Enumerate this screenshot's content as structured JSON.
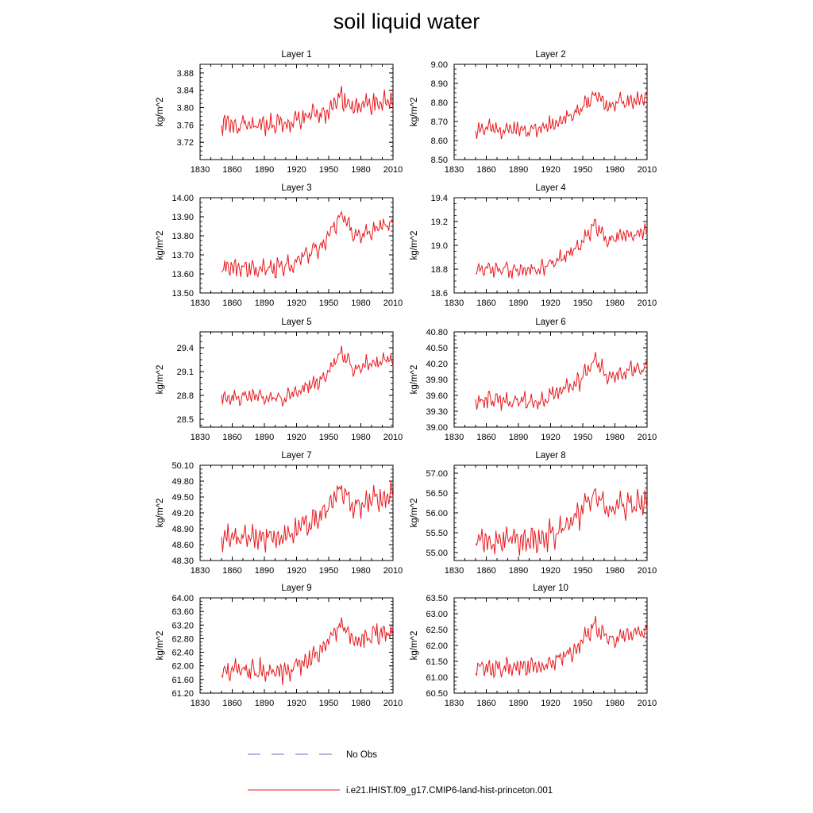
{
  "title": "soil liquid water",
  "legend": {
    "placement": "bottom-center",
    "entries": [
      {
        "label": "No Obs",
        "color": "#6b6bc8",
        "style": "dashed"
      },
      {
        "label": "i.e21.IHIST.f09_g17.CMIP6-land-hist-princeton.001",
        "color": "#e8191e",
        "style": "solid"
      }
    ]
  },
  "colors": {
    "series": "#e8191e",
    "obs": "#6b6bc8",
    "axis": "#000000"
  },
  "chart_data": [
    {
      "type": "line",
      "title": "Layer 1",
      "ylabel": "kg/m^2",
      "xlim": [
        1830,
        2010
      ],
      "ylim": [
        3.68,
        3.9
      ],
      "xticks": [
        1830,
        1860,
        1890,
        1920,
        1950,
        1980,
        2010
      ],
      "yticks": [
        3.72,
        3.76,
        3.8,
        3.84,
        3.88
      ],
      "ytick_labels": [
        "3.72",
        "3.76",
        "3.80",
        "3.84",
        "3.88"
      ],
      "base": 3.76,
      "trend": 0.065,
      "amp": 0.03,
      "seed": 1,
      "series": [
        {
          "name": "i.e21.IHIST.f09_g17.CMIP6-land-hist-princeton.001",
          "x_start": 1850,
          "x_end": 2010
        }
      ]
    },
    {
      "type": "line",
      "title": "Layer 2",
      "ylabel": "kg/m^2",
      "xlim": [
        1830,
        2010
      ],
      "ylim": [
        8.5,
        9.0
      ],
      "xticks": [
        1830,
        1860,
        1890,
        1920,
        1950,
        1980,
        2010
      ],
      "yticks": [
        8.5,
        8.6,
        8.7,
        8.8,
        8.9,
        9.0
      ],
      "ytick_labels": [
        "8.50",
        "8.60",
        "8.70",
        "8.80",
        "8.90",
        "9.00"
      ],
      "base": 8.66,
      "trend": 0.19,
      "amp": 0.05,
      "seed": 2,
      "series": [
        {
          "name": "i.e21.IHIST.f09_g17.CMIP6-land-hist-princeton.001",
          "x_start": 1850,
          "x_end": 2010
        }
      ]
    },
    {
      "type": "line",
      "title": "Layer 3",
      "ylabel": "kg/m^2",
      "xlim": [
        1830,
        2010
      ],
      "ylim": [
        13.5,
        14.0
      ],
      "xticks": [
        1830,
        1860,
        1890,
        1920,
        1950,
        1980,
        2010
      ],
      "yticks": [
        13.5,
        13.6,
        13.7,
        13.8,
        13.9,
        14.0
      ],
      "ytick_labels": [
        "13.50",
        "13.60",
        "13.70",
        "13.80",
        "13.90",
        "14.00"
      ],
      "base": 13.63,
      "trend": 0.28,
      "amp": 0.06,
      "seed": 3,
      "series": [
        {
          "name": "i.e21.IHIST.f09_g17.CMIP6-land-hist-princeton.001",
          "x_start": 1850,
          "x_end": 2010
        }
      ]
    },
    {
      "type": "line",
      "title": "Layer 4",
      "ylabel": "kg/m^2",
      "xlim": [
        1830,
        2010
      ],
      "ylim": [
        18.6,
        19.4
      ],
      "xticks": [
        1830,
        1860,
        1890,
        1920,
        1950,
        1980,
        2010
      ],
      "yticks": [
        18.6,
        18.8,
        19.0,
        19.2,
        19.4
      ],
      "ytick_labels": [
        "18.6",
        "18.8",
        "19.0",
        "19.2",
        "19.4"
      ],
      "base": 18.8,
      "trend": 0.38,
      "amp": 0.08,
      "seed": 4,
      "series": [
        {
          "name": "i.e21.IHIST.f09_g17.CMIP6-land-hist-princeton.001",
          "x_start": 1850,
          "x_end": 2010
        }
      ]
    },
    {
      "type": "line",
      "title": "Layer 5",
      "ylabel": "kg/m^2",
      "xlim": [
        1830,
        2010
      ],
      "ylim": [
        28.4,
        29.6
      ],
      "xticks": [
        1830,
        1860,
        1890,
        1920,
        1950,
        1980,
        2010
      ],
      "yticks": [
        28.5,
        28.8,
        29.1,
        29.4
      ],
      "ytick_labels": [
        "28.5",
        "28.8",
        "29.1",
        "29.4"
      ],
      "base": 28.77,
      "trend": 0.57,
      "amp": 0.13,
      "seed": 5,
      "series": [
        {
          "name": "i.e21.IHIST.f09_g17.CMIP6-land-hist-princeton.001",
          "x_start": 1850,
          "x_end": 2010
        }
      ]
    },
    {
      "type": "line",
      "title": "Layer 6",
      "ylabel": "kg/m^2",
      "xlim": [
        1830,
        2010
      ],
      "ylim": [
        39.0,
        40.8
      ],
      "xticks": [
        1830,
        1860,
        1890,
        1920,
        1950,
        1980,
        2010
      ],
      "yticks": [
        39.0,
        39.3,
        39.6,
        39.9,
        40.2,
        40.5,
        40.8
      ],
      "ytick_labels": [
        "39.00",
        "39.30",
        "39.60",
        "39.90",
        "40.20",
        "40.50",
        "40.80"
      ],
      "base": 39.5,
      "trend": 0.75,
      "amp": 0.2,
      "seed": 6,
      "series": [
        {
          "name": "i.e21.IHIST.f09_g17.CMIP6-land-hist-princeton.001",
          "x_start": 1850,
          "x_end": 2010
        }
      ]
    },
    {
      "type": "line",
      "title": "Layer 7",
      "ylabel": "kg/m^2",
      "xlim": [
        1830,
        2010
      ],
      "ylim": [
        48.3,
        50.1
      ],
      "xticks": [
        1830,
        1860,
        1890,
        1920,
        1950,
        1980,
        2010
      ],
      "yticks": [
        48.3,
        48.6,
        48.9,
        49.2,
        49.5,
        49.8,
        50.1
      ],
      "ytick_labels": [
        "48.30",
        "48.60",
        "48.90",
        "49.20",
        "49.50",
        "49.80",
        "50.10"
      ],
      "base": 48.75,
      "trend": 0.95,
      "amp": 0.28,
      "seed": 7,
      "series": [
        {
          "name": "i.e21.IHIST.f09_g17.CMIP6-land-hist-princeton.001",
          "x_start": 1850,
          "x_end": 2010
        }
      ]
    },
    {
      "type": "line",
      "title": "Layer 8",
      "ylabel": "kg/m^2",
      "xlim": [
        1830,
        2010
      ],
      "ylim": [
        54.8,
        57.2
      ],
      "xticks": [
        1830,
        1860,
        1890,
        1920,
        1950,
        1980,
        2010
      ],
      "yticks": [
        55.0,
        55.5,
        56.0,
        56.5,
        57.0
      ],
      "ytick_labels": [
        "55.00",
        "55.50",
        "56.00",
        "56.50",
        "57.00"
      ],
      "base": 55.3,
      "trend": 1.2,
      "amp": 0.4,
      "seed": 8,
      "series": [
        {
          "name": "i.e21.IHIST.f09_g17.CMIP6-land-hist-princeton.001",
          "x_start": 1850,
          "x_end": 2010
        }
      ]
    },
    {
      "type": "line",
      "title": "Layer 9",
      "ylabel": "kg/m^2",
      "xlim": [
        1830,
        2010
      ],
      "ylim": [
        61.2,
        64.0
      ],
      "xticks": [
        1830,
        1860,
        1890,
        1920,
        1950,
        1980,
        2010
      ],
      "yticks": [
        61.2,
        61.6,
        62.0,
        62.4,
        62.8,
        63.2,
        63.6,
        64.0
      ],
      "ytick_labels": [
        "61.20",
        "61.60",
        "62.00",
        "62.40",
        "62.80",
        "63.20",
        "63.60",
        "64.00"
      ],
      "base": 61.85,
      "trend": 1.4,
      "amp": 0.38,
      "seed": 9,
      "series": [
        {
          "name": "i.e21.IHIST.f09_g17.CMIP6-land-hist-princeton.001",
          "x_start": 1850,
          "x_end": 2010
        }
      ]
    },
    {
      "type": "line",
      "title": "Layer 10",
      "ylabel": "kg/m^2",
      "xlim": [
        1830,
        2010
      ],
      "ylim": [
        60.5,
        63.5
      ],
      "xticks": [
        1830,
        1860,
        1890,
        1920,
        1950,
        1980,
        2010
      ],
      "yticks": [
        60.5,
        61.0,
        61.5,
        62.0,
        62.5,
        63.0,
        63.5
      ],
      "ytick_labels": [
        "60.50",
        "61.00",
        "61.50",
        "62.00",
        "62.50",
        "63.00",
        "63.50"
      ],
      "base": 61.3,
      "trend": 1.4,
      "amp": 0.35,
      "seed": 10,
      "series": [
        {
          "name": "i.e21.IHIST.f09_g17.CMIP6-land-hist-princeton.001",
          "x_start": 1850,
          "x_end": 2010
        }
      ]
    }
  ]
}
